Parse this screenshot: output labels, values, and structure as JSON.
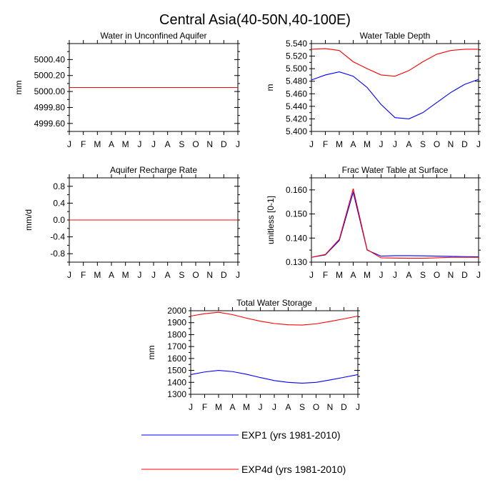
{
  "figure_title": "Central Asia(40-50N,40-100E)",
  "colors": {
    "exp1": "#0000ff",
    "exp4d": "#ff0000",
    "axis": "#000000"
  },
  "legend": [
    {
      "label": "EXP1 (yrs 1981-2010)",
      "color": "#0000ff"
    },
    {
      "label": "EXP4d (yrs 1981-2010)",
      "color": "#ff0000"
    }
  ],
  "chart_data": [
    {
      "id": "p1",
      "type": "line",
      "title": "Water in Unconfined Aquifer",
      "xlabel": "",
      "ylabel": "mm",
      "categories": [
        "J",
        "F",
        "M",
        "A",
        "M",
        "J",
        "J",
        "A",
        "S",
        "O",
        "N",
        "D",
        "J"
      ],
      "ylim": [
        4999.5,
        5000.6
      ],
      "yticks": [
        "4999.60",
        "4999.80",
        "5000.00",
        "5000.20",
        "5000.40"
      ],
      "ytick_values": [
        4999.6,
        4999.8,
        5000.0,
        5000.2,
        5000.4
      ],
      "series": [
        {
          "name": "EXP1 (yrs 1981-2010)",
          "color": "#0000ff",
          "values": [
            5000.05,
            5000.05,
            5000.05,
            5000.05,
            5000.05,
            5000.05,
            5000.05,
            5000.05,
            5000.05,
            5000.05,
            5000.05,
            5000.05,
            5000.05
          ]
        },
        {
          "name": "EXP4d (yrs 1981-2010)",
          "color": "#ff0000",
          "values": [
            5000.05,
            5000.05,
            5000.05,
            5000.05,
            5000.05,
            5000.05,
            5000.05,
            5000.05,
            5000.05,
            5000.05,
            5000.05,
            5000.05,
            5000.05
          ]
        }
      ]
    },
    {
      "id": "p2",
      "type": "line",
      "title": "Water Table Depth",
      "xlabel": "",
      "ylabel": "m",
      "categories": [
        "J",
        "F",
        "M",
        "A",
        "M",
        "J",
        "J",
        "A",
        "S",
        "O",
        "N",
        "D",
        "J"
      ],
      "ylim": [
        5.4,
        5.54
      ],
      "yticks": [
        "5.400",
        "5.420",
        "5.440",
        "5.460",
        "5.480",
        "5.500",
        "5.520",
        "5.540"
      ],
      "ytick_values": [
        5.4,
        5.42,
        5.44,
        5.46,
        5.48,
        5.5,
        5.52,
        5.54
      ],
      "series": [
        {
          "name": "EXP1 (yrs 1981-2010)",
          "color": "#0000ff",
          "values": [
            5.482,
            5.49,
            5.495,
            5.488,
            5.47,
            5.443,
            5.422,
            5.42,
            5.43,
            5.446,
            5.462,
            5.475,
            5.483
          ]
        },
        {
          "name": "EXP4d (yrs 1981-2010)",
          "color": "#ff0000",
          "values": [
            5.531,
            5.532,
            5.529,
            5.511,
            5.5,
            5.49,
            5.488,
            5.497,
            5.511,
            5.523,
            5.529,
            5.531,
            5.531
          ]
        }
      ]
    },
    {
      "id": "p3",
      "type": "line",
      "title": "Aquifer Recharge Rate",
      "xlabel": "",
      "ylabel": "mm/d",
      "categories": [
        "J",
        "F",
        "M",
        "A",
        "M",
        "J",
        "J",
        "A",
        "S",
        "O",
        "N",
        "D",
        "J"
      ],
      "ylim": [
        -1.0,
        1.0
      ],
      "yticks": [
        "-0.8",
        "-0.4",
        "0.0",
        "0.4",
        "0.8"
      ],
      "ytick_values": [
        -0.8,
        -0.4,
        0.0,
        0.4,
        0.8
      ],
      "series": [
        {
          "name": "EXP1 (yrs 1981-2010)",
          "color": "#0000ff",
          "values": [
            0,
            0,
            0,
            0,
            0,
            0,
            0,
            0,
            0,
            0,
            0,
            0,
            0
          ]
        },
        {
          "name": "EXP4d (yrs 1981-2010)",
          "color": "#ff0000",
          "values": [
            0,
            0,
            0,
            0,
            0,
            0,
            0,
            0,
            0,
            0,
            0,
            0,
            0
          ]
        }
      ]
    },
    {
      "id": "p4",
      "type": "line",
      "title": "Frac Water Table at Surface",
      "xlabel": "",
      "ylabel": "unitless [0-1]",
      "categories": [
        "J",
        "F",
        "M",
        "A",
        "M",
        "J",
        "J",
        "A",
        "S",
        "O",
        "N",
        "D",
        "J"
      ],
      "ylim": [
        0.13,
        0.165
      ],
      "yticks": [
        "0.130",
        "0.140",
        "0.150",
        "0.160"
      ],
      "ytick_values": [
        0.13,
        0.14,
        0.15,
        0.16
      ],
      "series": [
        {
          "name": "EXP1 (yrs 1981-2010)",
          "color": "#0000ff",
          "values": [
            0.132,
            0.133,
            0.139,
            0.159,
            0.135,
            0.1325,
            0.1327,
            0.1327,
            0.1326,
            0.1325,
            0.1324,
            0.1323,
            0.1322
          ]
        },
        {
          "name": "EXP4d (yrs 1981-2010)",
          "color": "#ff0000",
          "values": [
            0.132,
            0.1332,
            0.1395,
            0.1605,
            0.1352,
            0.1318,
            0.1317,
            0.1316,
            0.1316,
            0.1318,
            0.132,
            0.132,
            0.132
          ]
        }
      ]
    },
    {
      "id": "p5",
      "type": "line",
      "title": "Total Water Storage",
      "xlabel": "",
      "ylabel": "mm",
      "categories": [
        "J",
        "F",
        "M",
        "A",
        "M",
        "J",
        "J",
        "A",
        "S",
        "O",
        "N",
        "D",
        "J"
      ],
      "ylim": [
        1300,
        2000
      ],
      "yticks": [
        "1300",
        "1400",
        "1500",
        "1600",
        "1700",
        "1800",
        "1900",
        "2000"
      ],
      "ytick_values": [
        1300,
        1400,
        1500,
        1600,
        1700,
        1800,
        1900,
        2000
      ],
      "series": [
        {
          "name": "EXP1 (yrs 1981-2010)",
          "color": "#0000ff",
          "values": [
            1465,
            1487,
            1500,
            1490,
            1468,
            1440,
            1415,
            1400,
            1393,
            1400,
            1420,
            1442,
            1465
          ]
        },
        {
          "name": "EXP4d (yrs 1981-2010)",
          "color": "#ff0000",
          "values": [
            1955,
            1975,
            1987,
            1967,
            1938,
            1912,
            1893,
            1882,
            1880,
            1890,
            1910,
            1932,
            1955
          ]
        }
      ]
    }
  ]
}
